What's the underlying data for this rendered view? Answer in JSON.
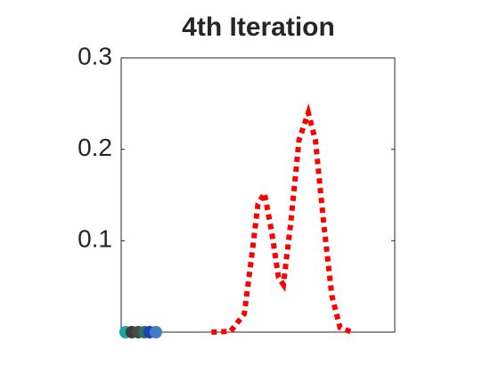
{
  "chart_data": {
    "type": "line",
    "title": "4th Iteration",
    "xlim": [
      0,
      10
    ],
    "ylim": [
      0,
      0.3
    ],
    "yticks": [
      0.1,
      0.2,
      0.3
    ],
    "series": [
      {
        "color": "#ff0000",
        "line_style": "dotted",
        "x": [
          3.3,
          4.0,
          4.5,
          4.8,
          5.0,
          5.24,
          5.5,
          5.75,
          5.93,
          6.2,
          6.5,
          6.84,
          7.1,
          7.4,
          7.7,
          8.0,
          8.44
        ],
        "values": [
          0,
          0.001,
          0.02,
          0.09,
          0.14,
          0.152,
          0.11,
          0.06,
          0.052,
          0.12,
          0.21,
          0.24,
          0.21,
          0.12,
          0.04,
          0.005,
          0
        ]
      }
    ],
    "points": {
      "x": [
        0.16,
        0.39,
        0.62,
        0.85,
        1.04,
        1.27
      ],
      "values": [
        0,
        0,
        0,
        0,
        0,
        0
      ],
      "colors": [
        "#1aa5a5",
        "#3d3d3d",
        "#4a4a4a",
        "#2f6f5f",
        "#2040c0",
        "#3f7fbf"
      ]
    }
  }
}
